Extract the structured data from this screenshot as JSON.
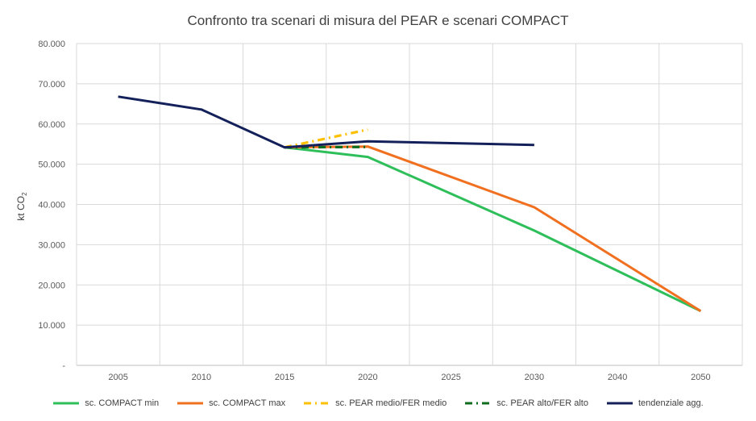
{
  "chart_data": {
    "type": "line",
    "title": "Confronto tra scenari di misura del PEAR e scenari COMPACT",
    "ylabel": "kt CO",
    "ylabel_subscript": "2",
    "xlabel": "",
    "categories": [
      "2005",
      "2010",
      "2015",
      "2020",
      "2025",
      "2030",
      "2040",
      "2050"
    ],
    "ylim": [
      0,
      80000
    ],
    "yticks": [
      0,
      10000,
      20000,
      30000,
      40000,
      50000,
      60000,
      70000,
      80000
    ],
    "ytick_labels": [
      "-",
      "10.000",
      "20.000",
      "30.000",
      "40.000",
      "50.000",
      "60.000",
      "70.000",
      "80.000"
    ],
    "grid": true,
    "legend_position": "bottom",
    "series": [
      {
        "name": "sc. COMPACT min",
        "color": "#2EBE5A",
        "dash": "solid",
        "values": [
          null,
          null,
          54200,
          51800,
          null,
          33500,
          null,
          13500
        ]
      },
      {
        "name": "sc. COMPACT max",
        "color": "#F07020",
        "dash": "solid",
        "values": [
          null,
          null,
          54200,
          54400,
          null,
          39300,
          null,
          13500
        ]
      },
      {
        "name": "sc. PEAR medio/FER medio",
        "color": "#FFC000",
        "dash": "dashdot",
        "values": [
          null,
          null,
          54200,
          58600,
          null,
          null,
          null,
          null
        ]
      },
      {
        "name": "sc. PEAR alto/FER alto",
        "color": "#0F6B1E",
        "dash": "dashdot",
        "values": [
          null,
          null,
          54200,
          54300,
          null,
          null,
          null,
          null
        ]
      },
      {
        "name": "tendenziale agg.",
        "color": "#14205A",
        "dash": "solid",
        "values": [
          66800,
          63600,
          54200,
          55700,
          null,
          54800,
          null,
          null
        ]
      }
    ]
  }
}
